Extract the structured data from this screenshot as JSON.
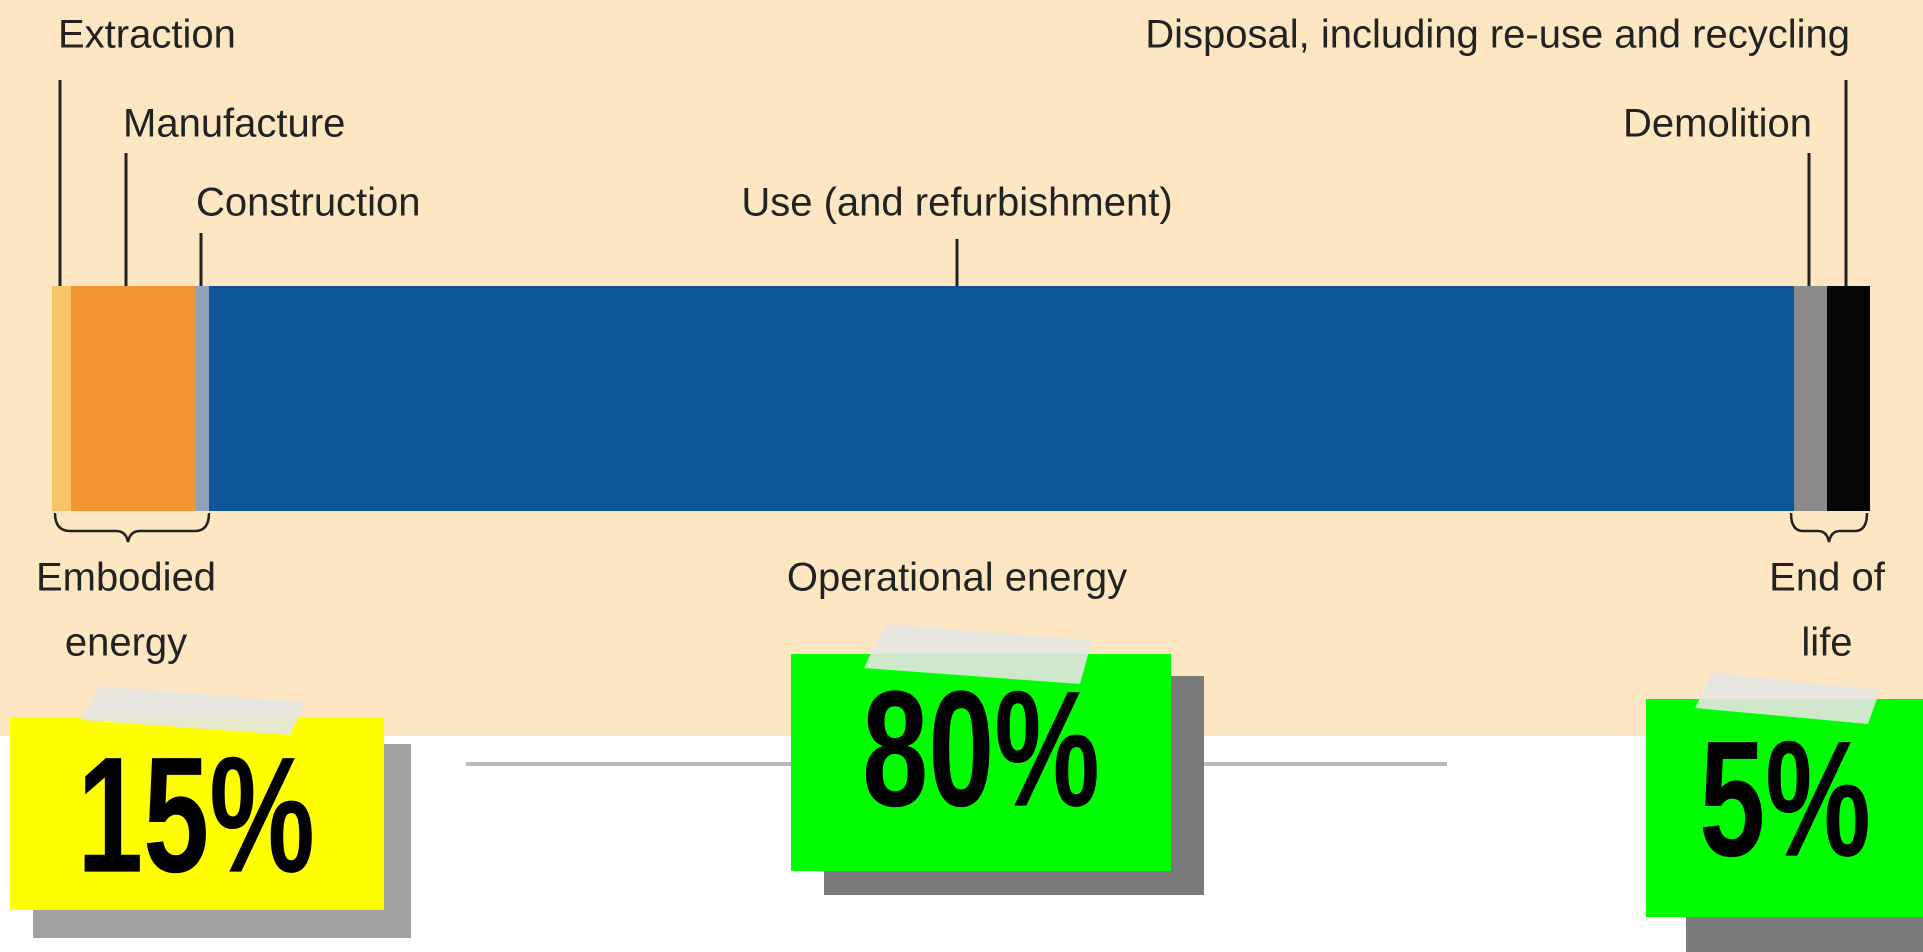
{
  "stages": [
    {
      "label": "Extraction"
    },
    {
      "label": "Manufacture"
    },
    {
      "label": "Construction"
    },
    {
      "label": "Use (and refurbishment)"
    },
    {
      "label": "Demolition"
    },
    {
      "label": "Disposal, including re-use and recycling"
    }
  ],
  "groups": [
    {
      "label_lines": [
        "Embodied",
        "energy"
      ],
      "share": "15%"
    },
    {
      "label_lines": [
        "Operational energy"
      ],
      "share": "80%"
    },
    {
      "label_lines": [
        "End of",
        "life"
      ],
      "share": "5%"
    }
  ]
}
